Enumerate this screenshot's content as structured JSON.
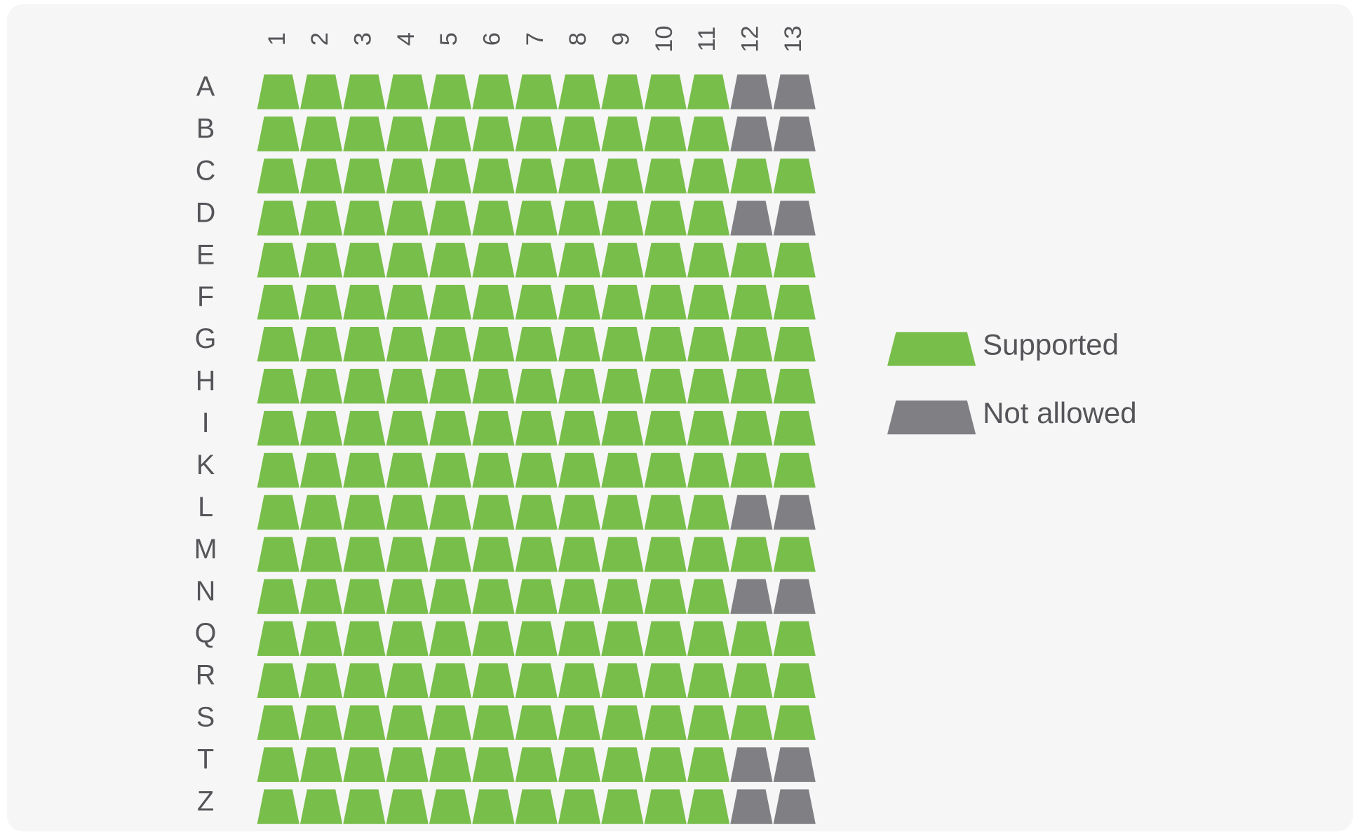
{
  "columns": [
    "1",
    "2",
    "3",
    "4",
    "5",
    "6",
    "7",
    "8",
    "9",
    "10",
    "11",
    "12",
    "13"
  ],
  "legend": [
    {
      "label": "Supported",
      "color": "#78be4a"
    },
    {
      "label": "Not allowed",
      "color": "#808084"
    }
  ],
  "rows": [
    {
      "label": "A",
      "cells": [
        0,
        0,
        0,
        0,
        0,
        0,
        0,
        0,
        0,
        0,
        0,
        1,
        1
      ]
    },
    {
      "label": "B",
      "cells": [
        0,
        0,
        0,
        0,
        0,
        0,
        0,
        0,
        0,
        0,
        0,
        1,
        1
      ]
    },
    {
      "label": "C",
      "cells": [
        0,
        0,
        0,
        0,
        0,
        0,
        0,
        0,
        0,
        0,
        0,
        0,
        0
      ]
    },
    {
      "label": "D",
      "cells": [
        0,
        0,
        0,
        0,
        0,
        0,
        0,
        0,
        0,
        0,
        0,
        1,
        1
      ]
    },
    {
      "label": "E",
      "cells": [
        0,
        0,
        0,
        0,
        0,
        0,
        0,
        0,
        0,
        0,
        0,
        0,
        0
      ]
    },
    {
      "label": "F",
      "cells": [
        0,
        0,
        0,
        0,
        0,
        0,
        0,
        0,
        0,
        0,
        0,
        0,
        0
      ]
    },
    {
      "label": "G",
      "cells": [
        0,
        0,
        0,
        0,
        0,
        0,
        0,
        0,
        0,
        0,
        0,
        0,
        0
      ]
    },
    {
      "label": "H",
      "cells": [
        0,
        0,
        0,
        0,
        0,
        0,
        0,
        0,
        0,
        0,
        0,
        0,
        0
      ]
    },
    {
      "label": "I",
      "cells": [
        0,
        0,
        0,
        0,
        0,
        0,
        0,
        0,
        0,
        0,
        0,
        0,
        0
      ]
    },
    {
      "label": "K",
      "cells": [
        0,
        0,
        0,
        0,
        0,
        0,
        0,
        0,
        0,
        0,
        0,
        0,
        0
      ]
    },
    {
      "label": "L",
      "cells": [
        0,
        0,
        0,
        0,
        0,
        0,
        0,
        0,
        0,
        0,
        0,
        1,
        1
      ]
    },
    {
      "label": "M",
      "cells": [
        0,
        0,
        0,
        0,
        0,
        0,
        0,
        0,
        0,
        0,
        0,
        0,
        0
      ]
    },
    {
      "label": "N",
      "cells": [
        0,
        0,
        0,
        0,
        0,
        0,
        0,
        0,
        0,
        0,
        0,
        1,
        1
      ]
    },
    {
      "label": "Q",
      "cells": [
        0,
        0,
        0,
        0,
        0,
        0,
        0,
        0,
        0,
        0,
        0,
        0,
        0
      ]
    },
    {
      "label": "R",
      "cells": [
        0,
        0,
        0,
        0,
        0,
        0,
        0,
        0,
        0,
        0,
        0,
        0,
        0
      ]
    },
    {
      "label": "S",
      "cells": [
        0,
        0,
        0,
        0,
        0,
        0,
        0,
        0,
        0,
        0,
        0,
        0,
        0
      ]
    },
    {
      "label": "T",
      "cells": [
        0,
        0,
        0,
        0,
        0,
        0,
        0,
        0,
        0,
        0,
        0,
        1,
        1
      ]
    },
    {
      "label": "Z",
      "cells": [
        0,
        0,
        0,
        0,
        0,
        0,
        0,
        0,
        0,
        0,
        0,
        1,
        1
      ]
    }
  ]
}
